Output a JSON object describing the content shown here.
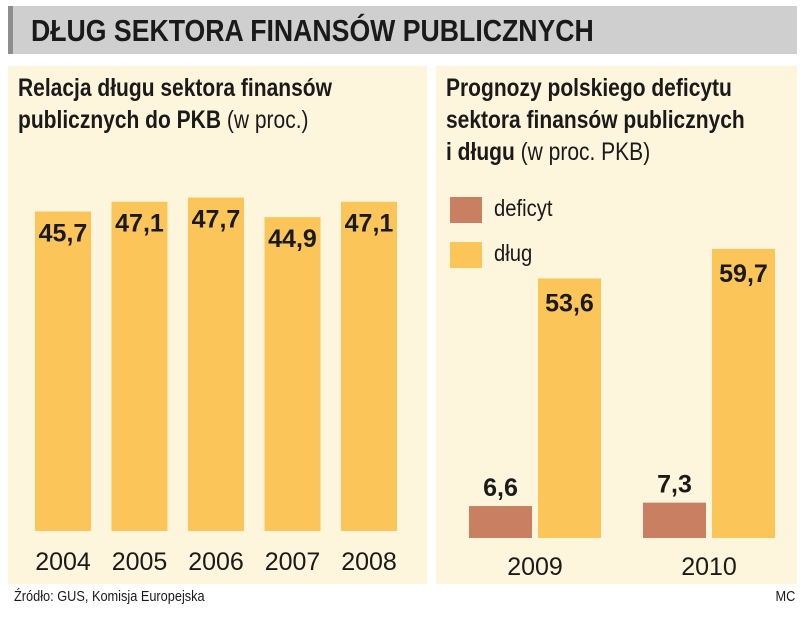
{
  "header": {
    "title": "DŁUG SEKTORA FINANSÓW PUBLICZNYCH"
  },
  "colors": {
    "debt": "#fbc55a",
    "deficit": "#c98062",
    "panel_bg": "#fdf6dc",
    "header_bg": "#cfcfcf"
  },
  "left_panel": {
    "title_bold_1": "Relacja długu sektora finansów",
    "title_bold_2": "publicznych do PKB",
    "title_light": "(w proc.)"
  },
  "right_panel": {
    "title_bold_1": "Prognozy polskiego deficytu",
    "title_bold_2": "sektora finansów publicznych",
    "title_bold_3": "i długu",
    "title_light": "(w proc. PKB)",
    "legend": [
      {
        "label": "deficyt",
        "color": "#c98062"
      },
      {
        "label": "dług",
        "color": "#fbc55a"
      }
    ]
  },
  "chart_data": [
    {
      "type": "bar",
      "title": "Relacja długu sektora finansów publicznych do PKB (w proc.)",
      "categories": [
        "2004",
        "2005",
        "2006",
        "2007",
        "2008"
      ],
      "values": [
        45.7,
        47.1,
        47.7,
        44.9,
        47.1
      ],
      "value_labels": [
        "45,7",
        "47,1",
        "47,7",
        "44,9",
        "47,1"
      ],
      "xlabel": "",
      "ylabel": "",
      "ylim": [
        0,
        52.5
      ]
    },
    {
      "type": "bar",
      "title": "Prognozy polskiego deficytu sektora finansów publicznych i długu (w proc. PKB)",
      "categories": [
        "2009",
        "2010"
      ],
      "series": [
        {
          "name": "deficyt",
          "values": [
            6.6,
            7.3
          ],
          "value_labels": [
            "6,6",
            "7,3"
          ]
        },
        {
          "name": "dług",
          "values": [
            53.6,
            59.7
          ],
          "value_labels": [
            "53,6",
            "59,7"
          ]
        }
      ],
      "xlabel": "",
      "ylabel": "",
      "ylim": [
        0,
        70
      ]
    }
  ],
  "footer": {
    "source": "Źródło: GUS, Komisja Europejska",
    "author": "MC"
  }
}
